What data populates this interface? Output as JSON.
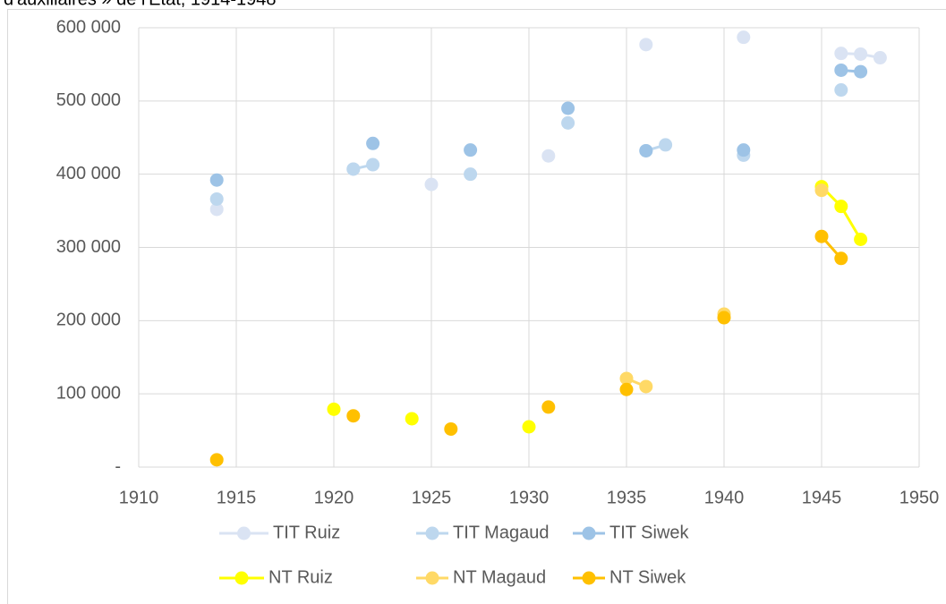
{
  "chart_data": {
    "type": "scatter",
    "title": "d'auxiliaires » de l'État, 1914-1948",
    "xlim": [
      1910,
      1950
    ],
    "xticks": [
      1910,
      1915,
      1920,
      1925,
      1930,
      1935,
      1940,
      1945,
      1950
    ],
    "ylim": [
      0,
      600000
    ],
    "yticks": [
      {
        "value": 0,
        "label": "-"
      },
      {
        "value": 100000,
        "label": "100 000"
      },
      {
        "value": 200000,
        "label": "200 000"
      },
      {
        "value": 300000,
        "label": "300 000"
      },
      {
        "value": 400000,
        "label": "400 000"
      },
      {
        "value": 500000,
        "label": "500 000"
      },
      {
        "value": 600000,
        "label": "600 000"
      }
    ],
    "grid": true,
    "legend": "bottom",
    "series": [
      {
        "name": "TIT Ruiz",
        "color": "#dae3f3",
        "x": [
          1914,
          1921,
          1925,
          1931,
          1936,
          1941,
          1946,
          1947,
          1948
        ],
        "values": [
          352000,
          407000,
          386000,
          425000,
          577000,
          587000,
          565000,
          564000,
          559000
        ]
      },
      {
        "name": "TIT Magaud",
        "color": "#bdd7ee",
        "x": [
          1914,
          1921,
          1922,
          1927,
          1932,
          1936,
          1937,
          1941,
          1946
        ],
        "values": [
          366000,
          407000,
          413000,
          400000,
          470000,
          432000,
          440000,
          426000,
          515000
        ]
      },
      {
        "name": "TIT Siwek",
        "color": "#9dc3e6",
        "x": [
          1914,
          1922,
          1927,
          1932,
          1936,
          1941,
          1946,
          1947
        ],
        "values": [
          392000,
          442000,
          433000,
          490000,
          432000,
          433000,
          542000,
          540000
        ]
      },
      {
        "name": "NT Ruiz",
        "color": "#ffff00",
        "x": [
          1920,
          1924,
          1930,
          1945,
          1946,
          1947
        ],
        "values": [
          79000,
          66000,
          55000,
          383000,
          356000,
          311000
        ]
      },
      {
        "name": "NT Magaud",
        "color": "#ffd966",
        "x": [
          1935,
          1936,
          1940,
          1945
        ],
        "values": [
          121000,
          110000,
          209000,
          378000
        ]
      },
      {
        "name": "NT Siwek",
        "color": "#ffc000",
        "x": [
          1914,
          1921,
          1926,
          1931,
          1935,
          1940,
          1945,
          1946
        ],
        "values": [
          10000,
          70000,
          52000,
          82000,
          106000,
          204000,
          315000,
          285000
        ]
      }
    ]
  }
}
